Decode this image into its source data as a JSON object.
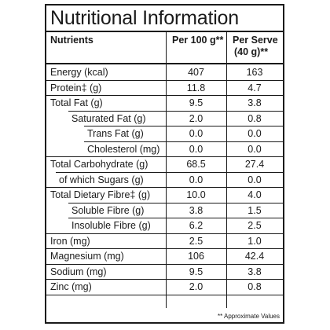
{
  "title": "Nutritional Information",
  "header": {
    "nutrients": "Nutrients",
    "per_100g": "Per 100 g**",
    "per_serve_line1": "Per Serve",
    "per_serve_line2": "(40 g)**"
  },
  "rows": [
    {
      "name": "Energy (kcal)",
      "per_100g": "407",
      "per_serve": "163"
    },
    {
      "name": "Protein‡ (g)",
      "per_100g": "11.8",
      "per_serve": "4.7"
    },
    {
      "name": "Total Fat (g)",
      "per_100g": "9.5",
      "per_serve": "3.8"
    },
    {
      "name": "Saturated Fat (g)",
      "per_100g": "2.0",
      "per_serve": "0.8"
    },
    {
      "name": "Trans Fat (g)",
      "per_100g": "0.0",
      "per_serve": "0.0"
    },
    {
      "name": "Cholesterol (mg)",
      "per_100g": "0.0",
      "per_serve": "0.0"
    },
    {
      "name": "Total Carbohydrate (g)",
      "per_100g": "68.5",
      "per_serve": "27.4"
    },
    {
      "name": "of which Sugars (g)",
      "per_100g": "0.0",
      "per_serve": "0.0"
    },
    {
      "name": "Total Dietary Fibre‡ (g)",
      "per_100g": "10.0",
      "per_serve": "4.0"
    },
    {
      "name": "Soluble Fibre (g)",
      "per_100g": "3.8",
      "per_serve": "1.5"
    },
    {
      "name": "Insoluble Fibre (g)",
      "per_100g": "6.2",
      "per_serve": "2.5"
    },
    {
      "name": "Iron (mg)",
      "per_100g": "2.5",
      "per_serve": "1.0"
    },
    {
      "name": "Magnesium (mg)",
      "per_100g": "106",
      "per_serve": "42.4"
    },
    {
      "name": "Sodium (mg)",
      "per_100g": "9.5",
      "per_serve": "3.8"
    },
    {
      "name": "Zinc (mg)",
      "per_100g": "2.0",
      "per_serve": "0.8"
    }
  ],
  "footnote": "** Approximate Values"
}
